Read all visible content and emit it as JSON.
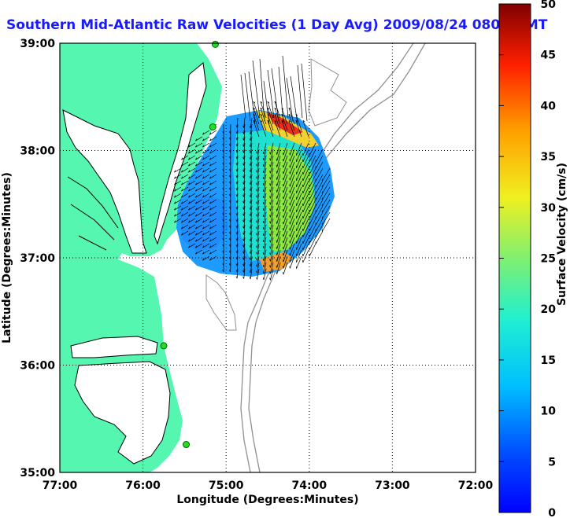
{
  "title": "Southern Mid-Atlantic Raw Velocities (1 Day Avg) 2009/08/24 0800 GMT",
  "map": {
    "xlabel": "Longitude (Degrees:Minutes)",
    "ylabel": "Latitude (Degrees:Minutes)",
    "x_ticks": [
      "77:00",
      "76:00",
      "75:00",
      "74:00",
      "73:00",
      "72:00"
    ],
    "y_ticks": [
      "39:00",
      "38:00",
      "37:00",
      "36:00",
      "35:00"
    ],
    "lon_range": [
      -77,
      -72
    ],
    "lat_range": [
      35,
      39
    ],
    "land_color": "#55f7b0",
    "grid": "dotted"
  },
  "colorbar": {
    "label": "Surface Velocity (cm/s)",
    "ticks": [
      "0",
      "5",
      "10",
      "15",
      "20",
      "25",
      "30",
      "35",
      "40",
      "45",
      "50"
    ],
    "range": [
      0,
      50
    ]
  },
  "stations": [
    {
      "lon": -75.13,
      "lat": 38.99
    },
    {
      "lon": -75.16,
      "lat": 38.22
    },
    {
      "lon": -75.75,
      "lat": 36.18
    },
    {
      "lon": -75.48,
      "lat": 35.26
    }
  ]
}
